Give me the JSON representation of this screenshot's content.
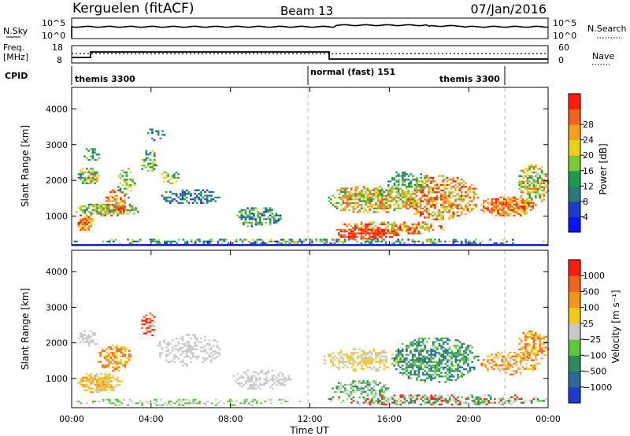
{
  "header": {
    "title": "Kerguelen (fitACF)",
    "beam": "Beam 13",
    "date": "07/Jan/2016"
  },
  "status_panels": {
    "nsky_label": "N.Sky",
    "nsearch_label": "N.Search",
    "freq_label_1": "Freq.",
    "freq_label_2": "[MHz]",
    "nave_label": "Nave",
    "cpid_label": "CPID",
    "noise_ticks": [
      "10^5",
      "10^0"
    ],
    "freq_ticks": [
      "18",
      "8"
    ],
    "nave_ticks": [
      "60",
      "0"
    ],
    "cpid_segments": [
      {
        "label": "themis 3300",
        "start": 0,
        "end": 12
      },
      {
        "label": "normal (fast) 151",
        "start": 12,
        "end": 21.9
      },
      {
        "label": "themis 3300",
        "start": 21.9,
        "end": 24
      }
    ]
  },
  "chart_data": [
    {
      "type": "heatmap",
      "name": "Power",
      "ylabel": "Slant Range [km]",
      "ylim": [
        180,
        4600
      ],
      "yticks": [
        1000,
        2000,
        3000,
        4000
      ],
      "xlim": [
        0,
        24
      ],
      "colorbar": {
        "title": "Power [dB]",
        "ticks": [
          "4",
          "8",
          "12",
          "16",
          "20",
          "24",
          "28"
        ],
        "colors": [
          "#0a14ff",
          "#1e3cc8",
          "#2a7a7a",
          "#1e9a4a",
          "#7cc83c",
          "#e8d21e",
          "#f5a01e",
          "#f0641e",
          "#ff1e0a"
        ]
      },
      "dashed_lines_hours": [
        12,
        21.9
      ]
    },
    {
      "type": "heatmap",
      "name": "Velocity",
      "ylabel": "Slant Range [km]",
      "ylim": [
        180,
        4600
      ],
      "yticks": [
        1000,
        2000,
        3000,
        4000
      ],
      "xlim": [
        0,
        24
      ],
      "colorbar": {
        "title": "Velocity [m s⁻¹]",
        "ticks": [
          "1000",
          "500",
          "100",
          "25",
          "−25",
          "−100",
          "−500",
          "−1000"
        ],
        "colors": [
          "#1e3cc8",
          "#2a6a9a",
          "#2e8a5a",
          "#5cc83c",
          "#c8c8c8",
          "#f0c81e",
          "#f0961e",
          "#f0641e",
          "#ff1e0a"
        ]
      },
      "dashed_lines_hours": [
        12,
        21.9
      ]
    }
  ],
  "time_axis": {
    "label": "Time UT",
    "ticks": [
      {
        "hour": 0,
        "label": "00:00"
      },
      {
        "hour": 4,
        "label": "04:00"
      },
      {
        "hour": 8,
        "label": "08:00"
      },
      {
        "hour": 12,
        "label": "12:00"
      },
      {
        "hour": 16,
        "label": "16:00"
      },
      {
        "hour": 20,
        "label": "20:00"
      },
      {
        "hour": 24,
        "label": "00:00"
      }
    ]
  }
}
